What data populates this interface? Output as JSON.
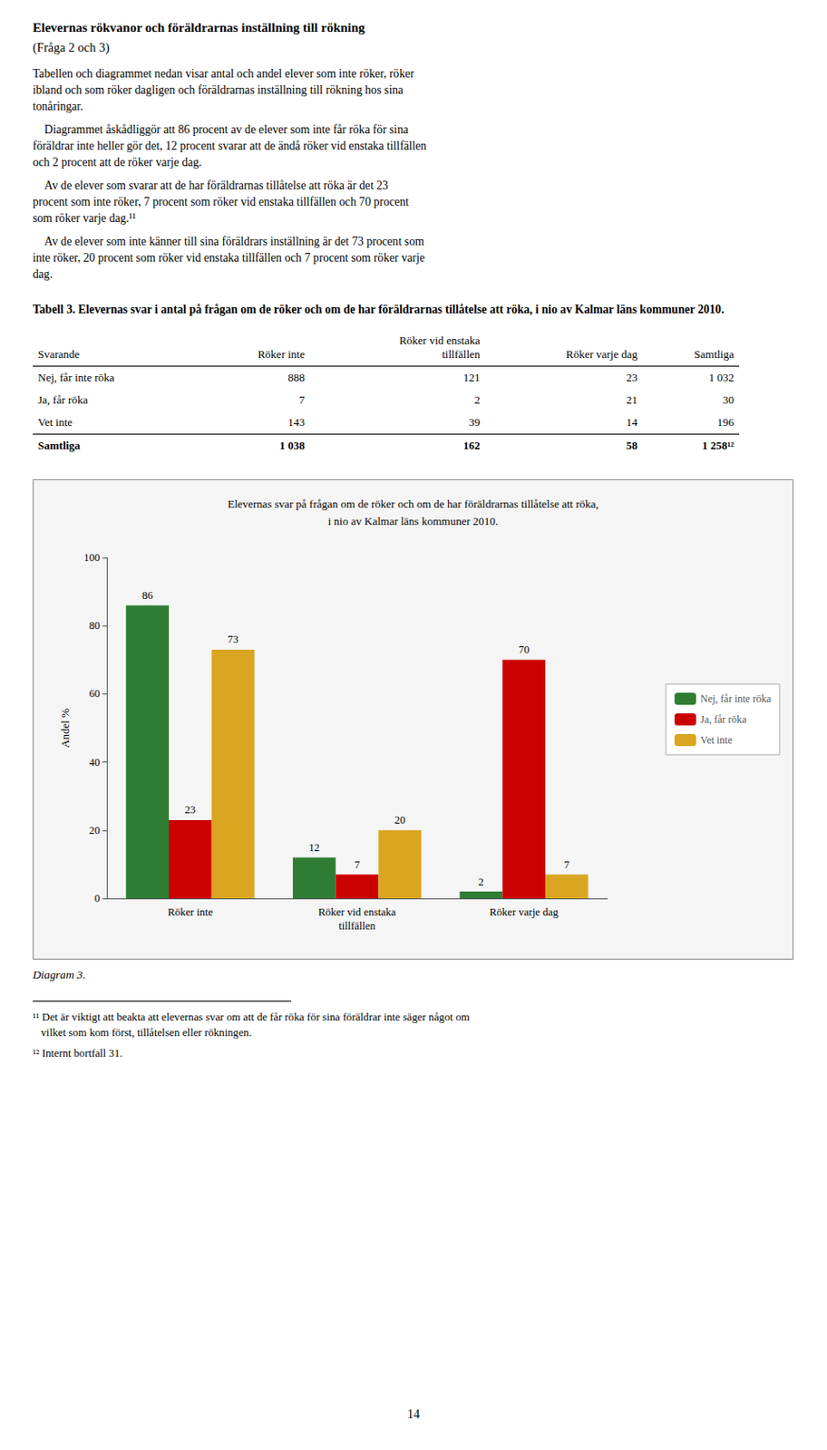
{
  "title": "Elevernas rökvanor och föräldrarnas inställning till rökning",
  "subtitle": "(Fråga 2 och 3)",
  "paragraphs": [
    "Tabellen och diagrammet nedan visar antal och andel elever som inte röker, röker\nibland och som röker dagligen och föräldrarnas inställning till rökning hos sina\ntonåringar.",
    "    Diagrammet åskådliggör att 86 procent av de elever som inte får röka för sina\nföräldrar inte heller gör det, 12 procent svarar att de ändå röker vid enstaka tillfällen\noch 2 procent att de röker varje dag.",
    "    Av de elever som svarar att de har föräldrarnas tillåtelse att röka är det 23\nprocent som inte röker, 7 procent som röker vid enstaka tillfällen och 70 procent\nsom röker varje dag.¹¹",
    "    Av de elever som inte känner till sina föräldrars inställning är det 73 procent som\ninte röker, 20 procent som röker vid enstaka tillfällen och 7 procent som röker varje\ndag."
  ],
  "table": {
    "title": "Tabell 3. Elevernas svar i antal på frågan om de röker och om de har föräldrarnas tillåtelse att röka, i nio av Kalmar läns kommuner 2010.",
    "headers": [
      "Svarande",
      "Röker inte",
      "Röker vid enstaka\ntillfällen",
      "Röker varje dag",
      "Samtliga"
    ],
    "rows": [
      [
        "Nej, får inte röka",
        "888",
        "121",
        "23",
        "1 032"
      ],
      [
        "Ja, får röka",
        "7",
        "2",
        "21",
        "30"
      ],
      [
        "Vet inte",
        "143",
        "39",
        "14",
        "196"
      ]
    ],
    "total": [
      "Samtliga",
      "1 038",
      "162",
      "58",
      "1 258¹²"
    ]
  },
  "caption": "Diagram 3.",
  "footnotes": [
    "¹¹ Det är viktigt att beakta att elevernas svar om att de får röka för sina föräldrar inte säger något om\n   vilket som kom först, tillåtelsen eller rökningen.",
    "¹² Internt bortfall 31."
  ],
  "page_number": "14",
  "chart_data": {
    "type": "bar",
    "title": "Elevernas svar på frågan om de röker och om de har föräldrarnas tillåtelse att röka,\ni nio av Kalmar läns kommuner 2010.",
    "categories": [
      "Röker inte",
      "Röker vid enstaka\ntillfällen",
      "Röker varje dag"
    ],
    "series": [
      {
        "name": "Nej, får inte röka",
        "color": "#2e7d32",
        "values": [
          86,
          12,
          2
        ]
      },
      {
        "name": "Ja, får röka",
        "color": "#cc0000",
        "values": [
          23,
          7,
          70
        ]
      },
      {
        "name": "Vet inte",
        "color": "#daa520",
        "values": [
          73,
          20,
          7
        ]
      }
    ],
    "ylabel": "Andel %",
    "ylim": [
      0,
      100
    ],
    "yticks": [
      0,
      20,
      40,
      60,
      80,
      100
    ],
    "grid": false,
    "legend": "right",
    "data_labels": true
  }
}
